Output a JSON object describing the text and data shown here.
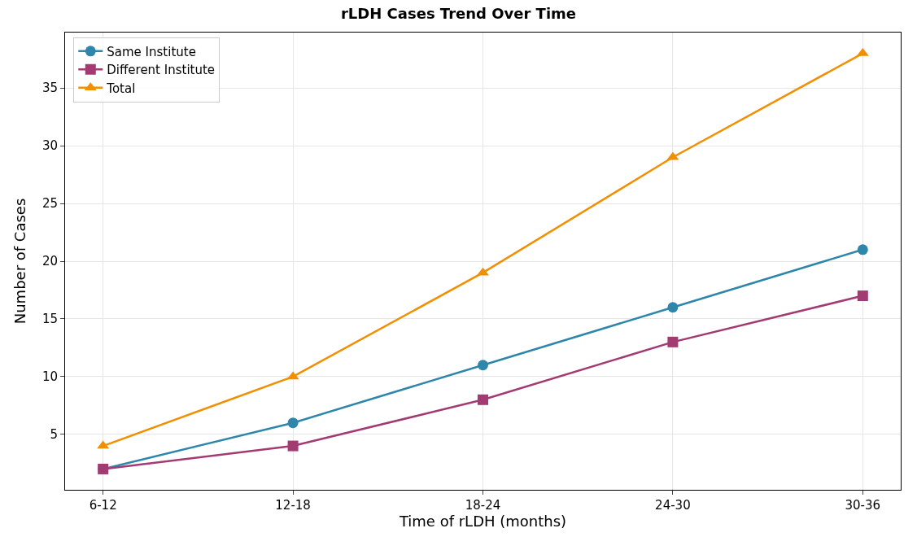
{
  "chart_data": {
    "type": "line",
    "title": "rLDH Cases Trend Over Time",
    "xlabel": "Time of rLDH (months)",
    "ylabel": "Number of Cases",
    "categories": [
      "6-12",
      "12-18",
      "18-24",
      "24-30",
      "30-36"
    ],
    "series": [
      {
        "name": "Same Institute",
        "color": "#2e86ab",
        "marker": "circle",
        "values": [
          2,
          6,
          11,
          16,
          21
        ]
      },
      {
        "name": "Different Institute",
        "color": "#a23b72",
        "marker": "square",
        "values": [
          2,
          4,
          8,
          13,
          17
        ]
      },
      {
        "name": "Total",
        "color": "#f18f01",
        "marker": "triangle",
        "values": [
          4,
          10,
          19,
          29,
          38
        ]
      }
    ],
    "ylim": [
      0.2,
      39.8
    ],
    "yticks": [
      5,
      10,
      15,
      20,
      25,
      30,
      35
    ],
    "grid": true,
    "legend": "top left",
    "line_style": "solid"
  }
}
